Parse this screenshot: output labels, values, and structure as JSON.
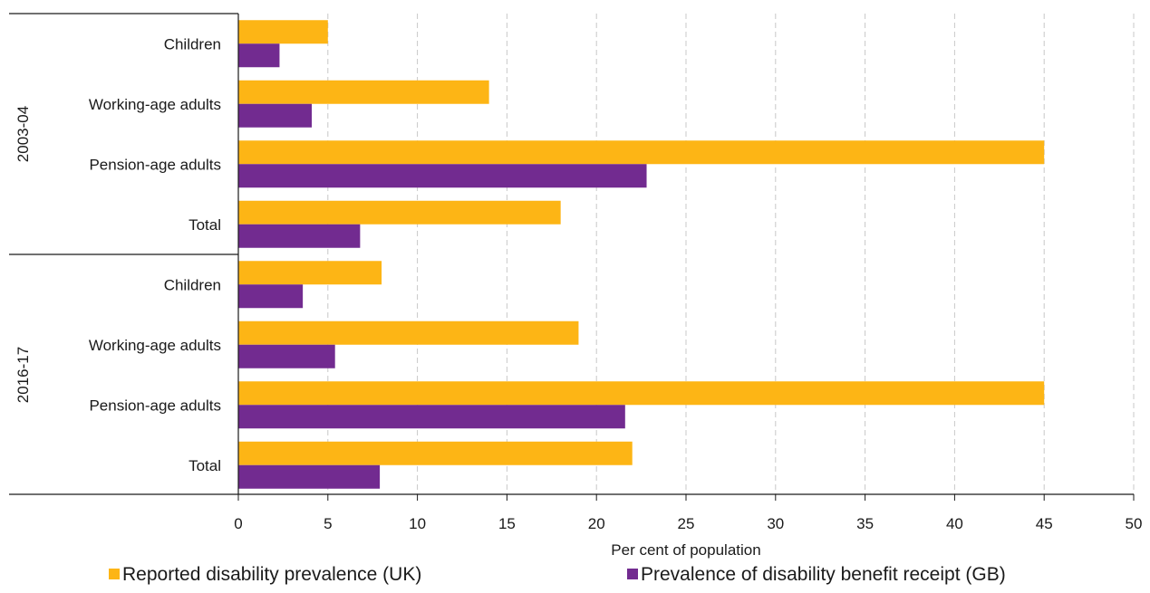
{
  "chart_data": {
    "type": "bar",
    "orientation": "horizontal",
    "xlabel": "Per cent of population",
    "xlim": [
      0,
      50
    ],
    "xticks": [
      0,
      5,
      10,
      15,
      20,
      25,
      30,
      35,
      40,
      45,
      50
    ],
    "grid": "vertical dashed",
    "legend_position": "bottom",
    "groups": [
      {
        "label": "2003-04",
        "categories": [
          "Children",
          "Working-age adults",
          "Pension-age adults",
          "Total"
        ]
      },
      {
        "label": "2016-17",
        "categories": [
          "Children",
          "Working-age adults",
          "Pension-age adults",
          "Total"
        ]
      }
    ],
    "series": [
      {
        "name": "Reported disability prevalence (UK)",
        "color": "#FDB515",
        "values": [
          5,
          14,
          45,
          18,
          8,
          19,
          45,
          22
        ]
      },
      {
        "name": "Prevalence of disability benefit receipt (GB)",
        "color": "#722B90",
        "values": [
          2.3,
          4.1,
          22.8,
          6.8,
          3.6,
          5.4,
          21.6,
          7.9
        ]
      }
    ]
  }
}
